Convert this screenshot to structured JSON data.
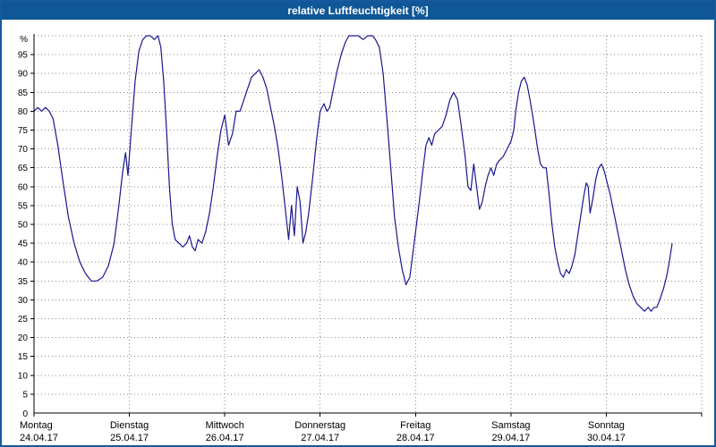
{
  "titlebar": {
    "title": "relative Luftfeuchtigkeit [%]"
  },
  "colors": {
    "titlebar_bg": "#0f5796",
    "window_border": "#16599d",
    "line": "#18188f",
    "grid": "#8a8a8a",
    "axis": "#000000"
  },
  "chart_data": {
    "type": "line",
    "title": "relative Luftfeuchtigkeit [%]",
    "ylabel": "%",
    "ylim": [
      0,
      100
    ],
    "ytick_step": 5,
    "xlim_days": [
      0,
      7
    ],
    "grid": "dotted",
    "legend": "none",
    "x_days": [
      {
        "name": "Montag",
        "date": "24.04.17"
      },
      {
        "name": "Dienstag",
        "date": "25.04.17"
      },
      {
        "name": "Mittwoch",
        "date": "26.04.17"
      },
      {
        "name": "Donnerstag",
        "date": "27.04.17"
      },
      {
        "name": "Freitag",
        "date": "28.04.17"
      },
      {
        "name": "Samstag",
        "date": "29.04.17"
      },
      {
        "name": "Sonntag",
        "date": "30.04.17"
      }
    ],
    "series": [
      {
        "name": "relative Luftfeuchtigkeit",
        "unit": "%",
        "color": "#18188f",
        "x_days": [
          0.0,
          0.04,
          0.08,
          0.12,
          0.16,
          0.2,
          0.25,
          0.3,
          0.36,
          0.42,
          0.48,
          0.54,
          0.6,
          0.66,
          0.72,
          0.78,
          0.84,
          0.89,
          0.93,
          0.96,
          0.985,
          1.02,
          1.06,
          1.1,
          1.14,
          1.18,
          1.22,
          1.26,
          1.3,
          1.33,
          1.36,
          1.39,
          1.42,
          1.45,
          1.48,
          1.52,
          1.56,
          1.6,
          1.63,
          1.66,
          1.69,
          1.72,
          1.76,
          1.8,
          1.84,
          1.88,
          1.92,
          1.96,
          2.0,
          2.04,
          2.08,
          2.12,
          2.16,
          2.2,
          2.24,
          2.28,
          2.32,
          2.36,
          2.4,
          2.44,
          2.48,
          2.52,
          2.56,
          2.6,
          2.64,
          2.67,
          2.7,
          2.73,
          2.76,
          2.79,
          2.82,
          2.85,
          2.88,
          2.92,
          2.96,
          3.0,
          3.04,
          3.07,
          3.1,
          3.14,
          3.18,
          3.22,
          3.26,
          3.3,
          3.35,
          3.4,
          3.45,
          3.5,
          3.55,
          3.58,
          3.62,
          3.66,
          3.7,
          3.74,
          3.78,
          3.82,
          3.86,
          3.9,
          3.94,
          3.97,
          4.0,
          4.04,
          4.08,
          4.11,
          4.14,
          4.17,
          4.2,
          4.24,
          4.28,
          4.32,
          4.36,
          4.4,
          4.44,
          4.48,
          4.52,
          4.55,
          4.58,
          4.61,
          4.64,
          4.67,
          4.7,
          4.73,
          4.76,
          4.79,
          4.82,
          4.85,
          4.88,
          4.92,
          4.96,
          5.0,
          5.03,
          5.05,
          5.08,
          5.11,
          5.14,
          5.17,
          5.2,
          5.24,
          5.28,
          5.31,
          5.34,
          5.37,
          5.4,
          5.43,
          5.46,
          5.49,
          5.52,
          5.55,
          5.58,
          5.61,
          5.64,
          5.67,
          5.7,
          5.73,
          5.76,
          5.79,
          5.81,
          5.83,
          5.86,
          5.89,
          5.92,
          5.95,
          5.98,
          6.0,
          6.04,
          6.08,
          6.12,
          6.16,
          6.2,
          6.24,
          6.28,
          6.32,
          6.36,
          6.4,
          6.44,
          6.47,
          6.5,
          6.53,
          6.56,
          6.6,
          6.63,
          6.66,
          6.69
        ],
        "values": [
          80,
          81,
          80,
          81,
          80,
          78,
          71,
          62,
          52,
          45,
          40,
          37,
          35,
          35,
          36,
          39,
          45,
          55,
          64,
          69,
          63,
          75,
          88,
          96,
          99,
          100,
          100,
          99,
          100,
          97,
          88,
          75,
          60,
          50,
          46,
          45,
          44,
          45,
          47,
          44,
          43,
          46,
          45,
          48,
          53,
          60,
          68,
          75,
          79,
          71,
          74,
          80,
          80,
          83,
          86,
          89,
          90,
          91,
          89,
          86,
          81,
          76,
          70,
          62,
          53,
          46,
          55,
          47,
          60,
          56,
          45,
          48,
          53,
          62,
          72,
          80,
          82,
          80,
          81,
          86,
          91,
          95,
          98,
          100,
          100,
          100,
          99,
          100,
          100,
          99,
          97,
          90,
          78,
          65,
          52,
          44,
          38,
          34,
          36,
          42,
          48,
          56,
          65,
          71,
          73,
          71,
          74,
          75,
          76,
          79,
          83,
          85,
          83,
          76,
          68,
          60,
          59,
          66,
          60,
          54,
          56,
          60,
          63,
          65,
          63,
          66,
          67,
          68,
          70,
          72,
          75,
          80,
          85,
          88,
          89,
          87,
          83,
          77,
          70,
          66,
          65,
          65,
          58,
          50,
          44,
          40,
          37,
          36,
          38,
          37,
          39,
          42,
          47,
          52,
          57,
          61,
          60,
          53,
          57,
          62,
          65,
          66,
          64,
          62,
          58,
          53,
          48,
          43,
          38,
          34,
          31,
          29,
          28,
          27,
          28,
          27,
          28,
          28,
          30,
          33,
          36,
          40,
          45
        ]
      }
    ]
  }
}
